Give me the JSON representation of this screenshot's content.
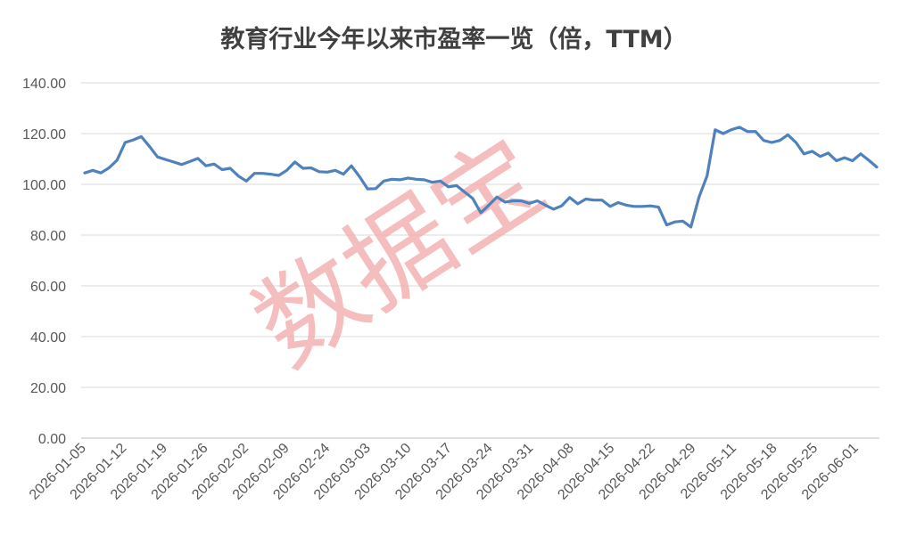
{
  "chart_data": {
    "type": "line",
    "title": "教育行业今年以来市盈率一览（倍，TTM）",
    "xlabel": "",
    "ylabel": "",
    "ylim": [
      0,
      140
    ],
    "yticks": [
      "0.00",
      "20.00",
      "40.00",
      "60.00",
      "80.00",
      "100.00",
      "120.00",
      "140.00"
    ],
    "grid": true,
    "legend": "none",
    "line_color": "#4f81bd",
    "x_tick_labels": [
      "2026-01-05",
      "2026-01-12",
      "2026-01-19",
      "2026-01-26",
      "2026-02-02",
      "2026-02-09",
      "2026-02-24",
      "2026-03-03",
      "2026-03-10",
      "2026-03-17",
      "2026-03-24",
      "2026-03-31",
      "2026-04-08",
      "2026-04-15",
      "2026-04-22",
      "2026-04-29",
      "2026-05-11",
      "2026-05-18",
      "2026-05-25",
      "2026-06-01"
    ],
    "series": [
      {
        "values": [
          104.5,
          105.5,
          104.5,
          106.5,
          109.5,
          116.5,
          117.5,
          118.8,
          115.0,
          110.8,
          109.8,
          108.8,
          107.8,
          109.0,
          110.2,
          107.3,
          108.0,
          105.8,
          106.3,
          103.3,
          101.3,
          104.3,
          104.3,
          104.0,
          103.5,
          105.5,
          108.8,
          106.3,
          106.5,
          105.0,
          104.8,
          105.5,
          104.0,
          107.3,
          103.0,
          98.2,
          98.3,
          101.3,
          102.0,
          101.8,
          102.5,
          102.0,
          101.8,
          100.8,
          101.3,
          99.0,
          99.5,
          97.0,
          94.5,
          88.8,
          91.8,
          95.0,
          93.0,
          93.5,
          93.5,
          92.5,
          93.5,
          91.8,
          90.2,
          91.5,
          94.8,
          92.3,
          94.2,
          93.8,
          93.8,
          91.3,
          92.8,
          91.8,
          91.3,
          91.3,
          91.5,
          91.0,
          84.0,
          85.2,
          85.5,
          83.2,
          95.0,
          103.3,
          121.5,
          120.0,
          121.5,
          122.5,
          120.8,
          120.8,
          117.3,
          116.5,
          117.3,
          119.5,
          116.5,
          112.0,
          113.0,
          111.0,
          112.3,
          109.3,
          110.5,
          109.3,
          112.0,
          109.5,
          106.8
        ]
      }
    ]
  },
  "watermark": "数据宝"
}
